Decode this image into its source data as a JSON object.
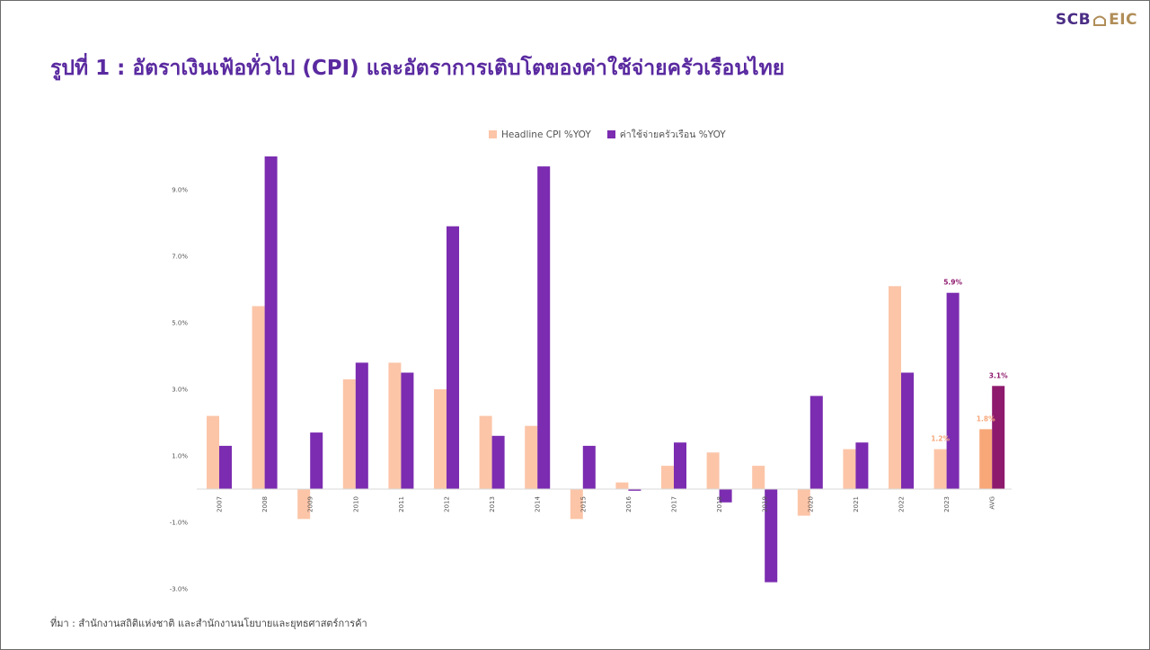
{
  "logo": {
    "left": "SCB",
    "right": "EIC"
  },
  "title": "รูปที่ 1 : อัตราเงินเฟ้อทั่วไป (CPI) และอัตราการเติบโตของค่าใช้จ่ายครัวเรือนไทย",
  "source": "ที่มา : สำนักงานสถิติแห่งชาติ และสำนักงานนโยบายและยุทธศาสตร์การค้า",
  "colors": {
    "cpi": "#fcc5a8",
    "cpi_avg": "#f8a779",
    "spend": "#7b2cb0",
    "spend_avg": "#8e1a6d",
    "title": "#5a2aa0"
  },
  "chart_data": {
    "type": "bar",
    "categories": [
      "2007",
      "2008",
      "2009",
      "2010",
      "2011",
      "2012",
      "2013",
      "2014",
      "2015",
      "2016",
      "2017",
      "2018",
      "2019",
      "2020",
      "2021",
      "2022",
      "2023",
      "AVG"
    ],
    "series": [
      {
        "name": "Headline CPI %YOY",
        "values": [
          2.2,
          5.5,
          -0.9,
          3.3,
          3.8,
          3.0,
          2.2,
          1.9,
          -0.9,
          0.2,
          0.7,
          1.1,
          0.7,
          -0.8,
          1.2,
          6.1,
          1.2,
          1.8
        ]
      },
      {
        "name": "ค่าใช้จ่ายครัวเรือน %YOY",
        "values": [
          1.3,
          10.0,
          1.7,
          3.8,
          3.5,
          7.9,
          1.6,
          9.7,
          1.3,
          -0.05,
          1.4,
          -0.4,
          -2.8,
          2.8,
          1.4,
          3.5,
          5.9,
          3.1
        ]
      }
    ],
    "y_ticks": [
      "9.0%",
      "7.0%",
      "5.0%",
      "3.0%",
      "1.0%",
      "-1.0%",
      "-3.0%"
    ],
    "data_labels": [
      {
        "series": 0,
        "category": "2023",
        "text": "1.2%"
      },
      {
        "series": 1,
        "category": "2023",
        "text": "5.9%"
      },
      {
        "series": 0,
        "category": "AVG",
        "text": "1.8%"
      },
      {
        "series": 1,
        "category": "AVG",
        "text": "3.1%"
      }
    ],
    "ylim": [
      -3.0,
      10.0
    ],
    "grid": false,
    "legend": "top-center"
  }
}
